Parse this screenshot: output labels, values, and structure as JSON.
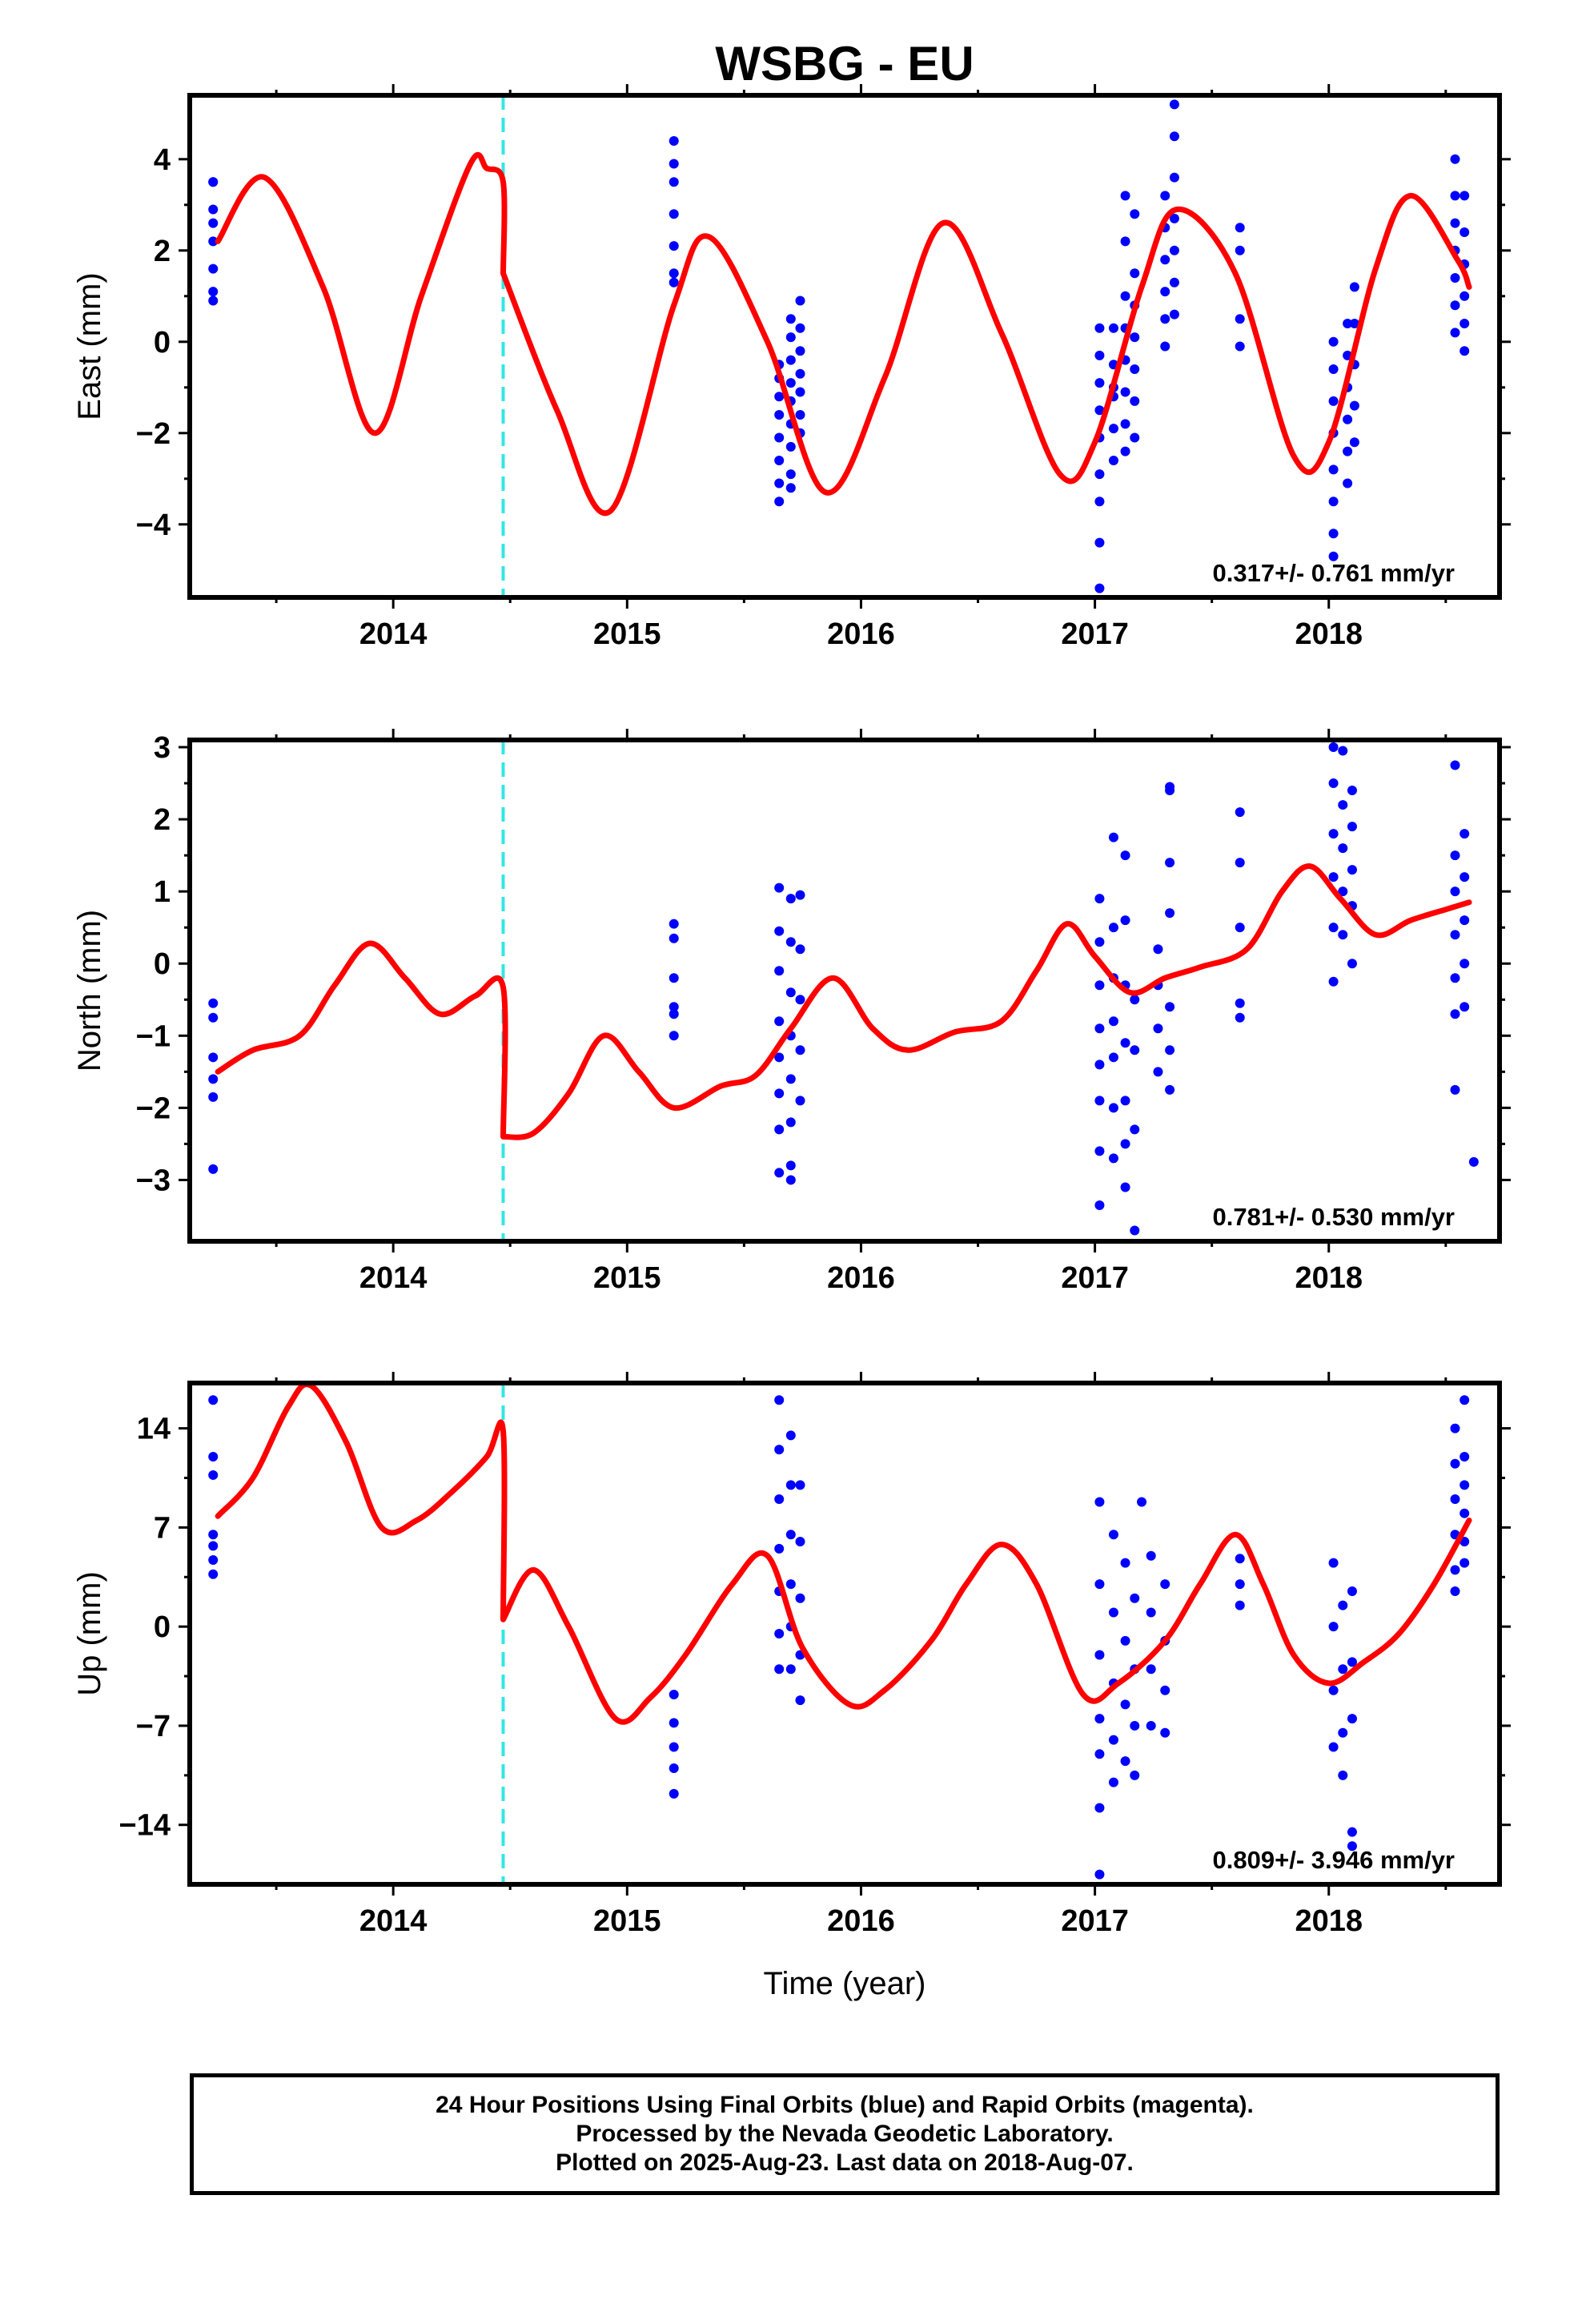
{
  "chart_data": {
    "title": "WSBG - EU",
    "type": "scatter",
    "xlabel": "Time (year)",
    "x_ticks": [
      "2014",
      "2015",
      "2016",
      "2017",
      "2018"
    ],
    "xlim": [
      2013.13,
      2018.73
    ],
    "event_line_x": 2014.47,
    "colors": {
      "final_orbits": "#0000ff",
      "model": "#ff0000",
      "event_line": "#33e6e6"
    },
    "panels": [
      {
        "component": "East",
        "ylabel": "East (mm)",
        "ylim": [
          -5.6,
          5.4
        ],
        "ytick_values": [
          4,
          2,
          0,
          -2,
          -4
        ],
        "ytick_labels": [
          "4",
          "2",
          "0",
          "−2",
          "−4"
        ],
        "rate_text": "0.317+/- 0.761 mm/yr",
        "model": {
          "x": [
            2013.25,
            2013.45,
            2013.7,
            2013.92,
            2014.12,
            2014.33,
            2014.4,
            2014.47,
            2014.47,
            2014.7,
            2014.93,
            2015.2,
            2015.35,
            2015.6,
            2015.85,
            2016.1,
            2016.35,
            2016.6,
            2016.85,
            2017.0,
            2017.2,
            2017.35,
            2017.6,
            2017.85,
            2018.0,
            2018.2,
            2018.35,
            2018.55,
            2018.6
          ],
          "y": [
            2.2,
            3.6,
            1.2,
            -2.0,
            1.0,
            3.9,
            3.8,
            3.5,
            1.5,
            -1.5,
            -3.7,
            0.8,
            2.3,
            0.0,
            -3.3,
            -0.8,
            2.6,
            0.2,
            -2.9,
            -2.2,
            1.2,
            2.9,
            1.5,
            -2.5,
            -2.2,
            1.6,
            3.2,
            1.8,
            1.2
          ]
        },
        "points": [
          {
            "x": 2013.23,
            "y": [
              3.5,
              3.5,
              2.9,
              2.2,
              1.6,
              1.1,
              0.9,
              2.6
            ]
          },
          {
            "x": 2015.2,
            "y": [
              4.4,
              3.9,
              3.5,
              2.8,
              2.1,
              1.5,
              1.3
            ]
          },
          {
            "x": 2015.65,
            "y": [
              -0.8,
              -1.2,
              -1.6,
              -2.1,
              -2.6,
              -3.1,
              -3.5,
              -0.5
            ]
          },
          {
            "x": 2015.7,
            "y": [
              0.5,
              0.1,
              -0.4,
              -0.9,
              -1.3,
              -1.8,
              -2.3,
              -2.9,
              -3.2
            ]
          },
          {
            "x": 2015.74,
            "y": [
              0.9,
              0.3,
              -0.2,
              -0.7,
              -1.1,
              -1.6,
              -2.0
            ]
          },
          {
            "x": 2017.02,
            "y": [
              0.3,
              -0.3,
              -0.9,
              -1.5,
              -2.1,
              -2.9,
              -3.5,
              -4.4,
              -5.4
            ]
          },
          {
            "x": 2017.08,
            "y": [
              0.3,
              -0.5,
              -1.2,
              -1.9,
              -2.6,
              -1.0
            ]
          },
          {
            "x": 2017.13,
            "y": [
              1.0,
              0.3,
              -0.4,
              -1.1,
              -1.8,
              -2.4,
              2.2,
              3.2
            ]
          },
          {
            "x": 2017.17,
            "y": [
              1.5,
              0.8,
              0.1,
              -0.6,
              -1.3,
              -2.1,
              2.8
            ]
          },
          {
            "x": 2017.3,
            "y": [
              3.2,
              2.5,
              1.8,
              1.1,
              0.5,
              -0.1
            ]
          },
          {
            "x": 2017.34,
            "y": [
              5.2,
              4.5,
              3.6,
              2.7,
              2.0,
              1.3,
              0.6
            ]
          },
          {
            "x": 2017.62,
            "y": [
              2.5,
              2.0,
              0.5,
              -0.1
            ]
          },
          {
            "x": 2018.02,
            "y": [
              0.0,
              -0.6,
              -1.3,
              -2.0,
              -2.8,
              -3.5,
              -4.2,
              -4.7
            ]
          },
          {
            "x": 2018.08,
            "y": [
              0.4,
              -0.3,
              -1.0,
              -1.7,
              -2.4,
              -3.1
            ]
          },
          {
            "x": 2018.11,
            "y": [
              1.2,
              0.4,
              -0.5,
              -1.4,
              -2.2
            ]
          },
          {
            "x": 2018.54,
            "y": [
              4.0,
              3.2,
              2.6,
              2.0,
              1.4,
              0.8,
              0.2
            ]
          },
          {
            "x": 2018.58,
            "y": [
              3.2,
              2.4,
              1.7,
              1.0,
              0.4,
              -0.2
            ]
          }
        ]
      },
      {
        "component": "North",
        "ylabel": "North (mm)",
        "ylim": [
          -3.85,
          3.1
        ],
        "ytick_values": [
          3,
          2,
          1,
          0,
          -1,
          -2,
          -3
        ],
        "ytick_labels": [
          "3",
          "2",
          "1",
          "0",
          "−1",
          "−2",
          "−3"
        ],
        "rate_text": "0.781+/- 0.530 mm/yr",
        "model": {
          "x": [
            2013.25,
            2013.4,
            2013.6,
            2013.75,
            2013.9,
            2014.05,
            2014.2,
            2014.35,
            2014.47,
            2014.47,
            2014.6,
            2014.75,
            2014.9,
            2015.05,
            2015.2,
            2015.4,
            2015.55,
            2015.7,
            2015.88,
            2016.05,
            2016.2,
            2016.4,
            2016.6,
            2016.75,
            2016.88,
            2017.0,
            2017.15,
            2017.3,
            2017.45,
            2017.65,
            2017.8,
            2017.92,
            2018.05,
            2018.2,
            2018.35,
            2018.5,
            2018.6
          ],
          "y": [
            -1.5,
            -1.2,
            -1.0,
            -0.3,
            0.28,
            -0.2,
            -0.7,
            -0.45,
            -0.33,
            -2.4,
            -2.35,
            -1.8,
            -1.0,
            -1.5,
            -2.0,
            -1.7,
            -1.55,
            -0.9,
            -0.2,
            -0.9,
            -1.2,
            -0.95,
            -0.8,
            -0.1,
            0.55,
            0.1,
            -0.4,
            -0.2,
            -0.05,
            0.2,
            1.0,
            1.35,
            0.9,
            0.4,
            0.6,
            0.75,
            0.85
          ]
        },
        "points": [
          {
            "x": 2013.23,
            "y": [
              -0.55,
              -0.75,
              -1.3,
              -1.6,
              -1.85,
              -2.85
            ]
          },
          {
            "x": 2015.2,
            "y": [
              0.55,
              0.35,
              -0.2,
              -0.6,
              -0.7,
              -1.0
            ]
          },
          {
            "x": 2015.65,
            "y": [
              1.05,
              0.45,
              -0.1,
              -0.8,
              -1.3,
              -1.8,
              -2.3,
              -2.9
            ]
          },
          {
            "x": 2015.7,
            "y": [
              0.9,
              0.3,
              -0.4,
              -1.0,
              -1.6,
              -2.2,
              -2.8,
              -3.0
            ]
          },
          {
            "x": 2015.74,
            "y": [
              0.95,
              0.2,
              -0.5,
              -1.2,
              -1.9
            ]
          },
          {
            "x": 2017.02,
            "y": [
              0.9,
              0.3,
              -0.3,
              -0.9,
              -1.4,
              -1.9,
              -2.6,
              -3.35
            ]
          },
          {
            "x": 2017.08,
            "y": [
              1.75,
              0.5,
              -0.2,
              -0.8,
              -1.3,
              -2.0,
              -2.7
            ]
          },
          {
            "x": 2017.13,
            "y": [
              1.5,
              0.6,
              -0.3,
              -1.1,
              -1.9,
              -2.5,
              -3.1
            ]
          },
          {
            "x": 2017.17,
            "y": [
              -0.5,
              -1.2,
              -2.3,
              -3.7
            ]
          },
          {
            "x": 2017.27,
            "y": [
              0.2,
              -0.3,
              -0.9,
              -1.5
            ]
          },
          {
            "x": 2017.32,
            "y": [
              2.45,
              2.4,
              1.4,
              0.7,
              -0.6,
              -1.2,
              -1.75
            ]
          },
          {
            "x": 2017.62,
            "y": [
              2.1,
              1.4,
              0.5,
              -0.55,
              -0.75
            ]
          },
          {
            "x": 2018.02,
            "y": [
              3.0,
              2.5,
              1.8,
              1.2,
              0.5,
              -0.25
            ]
          },
          {
            "x": 2018.06,
            "y": [
              2.95,
              2.2,
              1.6,
              1.0,
              0.4
            ]
          },
          {
            "x": 2018.1,
            "y": [
              2.4,
              1.9,
              1.3,
              0.8,
              0.0
            ]
          },
          {
            "x": 2018.54,
            "y": [
              2.75,
              1.5,
              1.0,
              0.4,
              -0.2,
              -0.7,
              -1.75
            ]
          },
          {
            "x": 2018.58,
            "y": [
              1.8,
              1.2,
              0.6,
              0.0,
              -0.6
            ]
          },
          {
            "x": 2018.62,
            "y": [
              -2.75
            ]
          }
        ]
      },
      {
        "component": "Up",
        "ylabel": "Up (mm)",
        "ylim": [
          -18.2,
          17.2
        ],
        "ytick_values": [
          14,
          7,
          0,
          -7,
          -14
        ],
        "ytick_labels": [
          "14",
          "7",
          "0",
          "−7",
          "−14"
        ],
        "rate_text": "0.809+/- 3.946 mm/yr",
        "model": {
          "x": [
            2013.25,
            2013.4,
            2013.55,
            2013.65,
            2013.8,
            2013.95,
            2014.1,
            2014.25,
            2014.4,
            2014.47,
            2014.47,
            2014.6,
            2014.75,
            2014.95,
            2015.1,
            2015.25,
            2015.45,
            2015.6,
            2015.75,
            2015.95,
            2016.1,
            2016.3,
            2016.45,
            2016.6,
            2016.75,
            2016.95,
            2017.1,
            2017.3,
            2017.45,
            2017.6,
            2017.72,
            2017.85,
            2018.0,
            2018.15,
            2018.3,
            2018.45,
            2018.6
          ],
          "y": [
            7.8,
            10.5,
            15.5,
            17.0,
            13.0,
            7.0,
            7.5,
            9.5,
            12.0,
            13.8,
            0.5,
            4.0,
            0.0,
            -6.5,
            -5.0,
            -2.0,
            3.0,
            5.0,
            -1.5,
            -5.5,
            -4.5,
            -1.0,
            3.0,
            5.8,
            3.0,
            -4.8,
            -4.0,
            -1.0,
            3.0,
            6.5,
            3.0,
            -2.0,
            -4.0,
            -2.5,
            -0.5,
            3.0,
            7.5
          ]
        },
        "points": [
          {
            "x": 2013.23,
            "y": [
              16.0,
              12.0,
              10.7,
              6.5,
              5.7,
              4.7,
              3.7
            ]
          },
          {
            "x": 2015.2,
            "y": [
              -4.8,
              -6.8,
              -8.5,
              -10.0,
              -11.8
            ]
          },
          {
            "x": 2015.65,
            "y": [
              16.0,
              12.5,
              9.0,
              5.5,
              2.5,
              -0.5,
              -3.0
            ]
          },
          {
            "x": 2015.7,
            "y": [
              13.5,
              10.0,
              6.5,
              3.0,
              0.0,
              -3.0
            ]
          },
          {
            "x": 2015.74,
            "y": [
              10.0,
              6.0,
              2.0,
              -2.0,
              -5.2
            ]
          },
          {
            "x": 2017.02,
            "y": [
              8.8,
              3.0,
              -2.0,
              -6.5,
              -9.0,
              -12.8,
              -17.5
            ]
          },
          {
            "x": 2017.08,
            "y": [
              6.5,
              1.0,
              -4.0,
              -8.0,
              -11.0
            ]
          },
          {
            "x": 2017.13,
            "y": [
              4.5,
              -1.0,
              -5.5,
              -9.5
            ]
          },
          {
            "x": 2017.17,
            "y": [
              2.0,
              -3.0,
              -7.0,
              -10.5
            ]
          },
          {
            "x": 2017.24,
            "y": [
              5.0,
              1.0,
              -3.0,
              -7.0
            ]
          },
          {
            "x": 2017.3,
            "y": [
              3.0,
              -1.0,
              -4.5,
              -7.5
            ]
          },
          {
            "x": 2017.2,
            "y": [
              8.8
            ]
          },
          {
            "x": 2017.62,
            "y": [
              4.8,
              3.0,
              1.5
            ]
          },
          {
            "x": 2018.02,
            "y": [
              4.5,
              0.0,
              -4.5,
              -8.5
            ]
          },
          {
            "x": 2018.06,
            "y": [
              1.5,
              -3.0,
              -7.5,
              -10.5
            ]
          },
          {
            "x": 2018.1,
            "y": [
              2.5,
              -2.5,
              -6.5,
              -14.5,
              -15.5
            ]
          },
          {
            "x": 2018.54,
            "y": [
              14.0,
              11.5,
              9.0,
              6.5,
              4.0,
              2.5
            ]
          },
          {
            "x": 2018.58,
            "y": [
              16.0,
              12.0,
              10.0,
              8.0,
              6.0,
              4.5
            ]
          }
        ]
      }
    ],
    "footer_lines": [
      "24 Hour Positions Using Final Orbits (blue) and Rapid Orbits (magenta).",
      "Processed by the Nevada Geodetic Laboratory.",
      "Plotted on 2025-Aug-23. Last data on 2018-Aug-07."
    ]
  }
}
